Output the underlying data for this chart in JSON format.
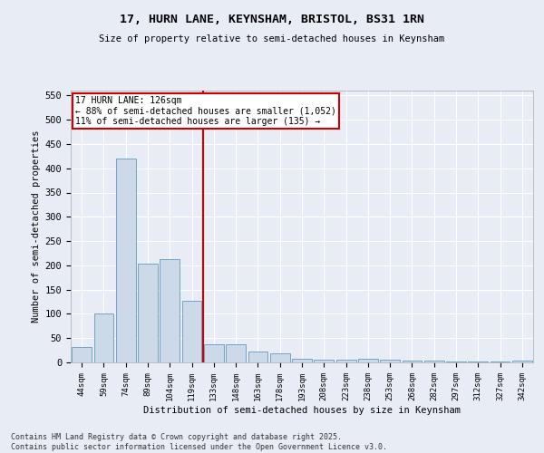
{
  "title1": "17, HURN LANE, KEYNSHAM, BRISTOL, BS31 1RN",
  "title2": "Size of property relative to semi-detached houses in Keynsham",
  "xlabel": "Distribution of semi-detached houses by size in Keynsham",
  "ylabel": "Number of semi-detached properties",
  "categories": [
    "44sqm",
    "59sqm",
    "74sqm",
    "89sqm",
    "104sqm",
    "119sqm",
    "133sqm",
    "148sqm",
    "163sqm",
    "178sqm",
    "193sqm",
    "208sqm",
    "223sqm",
    "238sqm",
    "253sqm",
    "268sqm",
    "282sqm",
    "297sqm",
    "312sqm",
    "327sqm",
    "342sqm"
  ],
  "values": [
    32,
    101,
    420,
    203,
    213,
    127,
    38,
    38,
    22,
    18,
    8,
    5,
    5,
    7,
    5,
    4,
    3,
    1,
    2,
    1,
    3
  ],
  "bar_color": "#ccd9e8",
  "bar_edge_color": "#6699bb",
  "vline_x": 5.5,
  "vline_color": "#cc0000",
  "annotation_title": "17 HURN LANE: 126sqm",
  "annotation_line1": "← 88% of semi-detached houses are smaller (1,052)",
  "annotation_line2": "11% of semi-detached houses are larger (135) →",
  "annotation_box_color": "#ffffff",
  "annotation_box_edge": "#cc0000",
  "ylim": [
    0,
    560
  ],
  "yticks": [
    0,
    50,
    100,
    150,
    200,
    250,
    300,
    350,
    400,
    450,
    500,
    550
  ],
  "bg_color": "#e8edf5",
  "grid_color": "#ffffff",
  "footer": "Contains HM Land Registry data © Crown copyright and database right 2025.\nContains public sector information licensed under the Open Government Licence v3.0."
}
